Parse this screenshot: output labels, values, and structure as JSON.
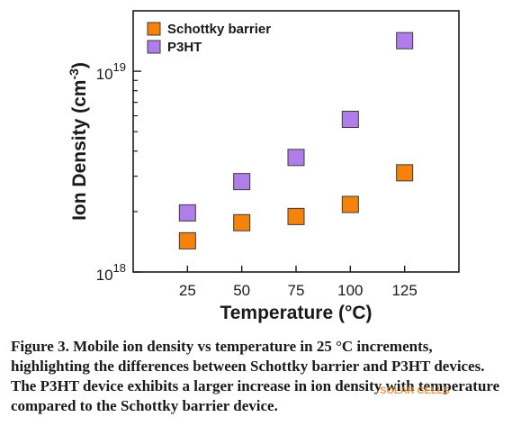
{
  "chart_data": {
    "type": "scatter",
    "title": "",
    "xlabel": "Temperature (°C)",
    "ylabel": "Ion Density (cm",
    "ylabel_sup": "-3",
    "ylabel_close": ")",
    "x_ticks": [
      "25",
      "50",
      "75",
      "100",
      "125"
    ],
    "xlim": [
      0,
      150
    ],
    "yscale": "log",
    "ylim": [
      1e+18,
      2e+19
    ],
    "y_ticks": [
      {
        "base": "10",
        "exp": "18",
        "value": 1e+18
      },
      {
        "base": "10",
        "exp": "19",
        "value": 1e+19
      }
    ],
    "legend_position": "top-left",
    "series": [
      {
        "name": "Schottky barrier",
        "color": "#f5820a",
        "marker": "square",
        "x": [
          25,
          50,
          75,
          100,
          125
        ],
        "y": [
          1.43e+18,
          1.76e+18,
          1.89e+18,
          2.17e+18,
          3.12e+18
        ]
      },
      {
        "name": "P3HT",
        "color": "#b07ee8",
        "marker": "square",
        "x": [
          25,
          50,
          75,
          100,
          125
        ],
        "y": [
          1.97e+18,
          2.82e+18,
          3.72e+18,
          5.76e+18,
          1.42e+19
        ]
      }
    ]
  },
  "caption": {
    "text": "Figure 3. Mobile ion density vs temperature in 25 °C increments, highlighting the differences between Schottky barrier and P3HT devices. The P3HT device exhibits a larger increase in ion density with temperature compared to the Schottky barrier device."
  },
  "watermark": {
    "text": "SOLAR CELLS"
  }
}
